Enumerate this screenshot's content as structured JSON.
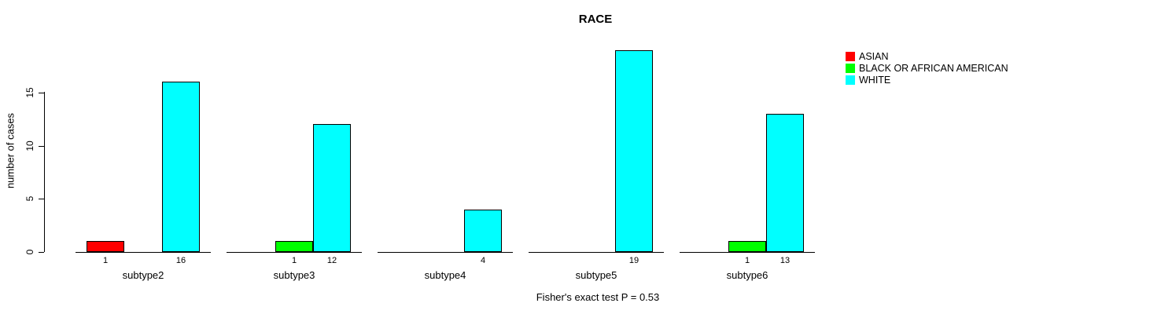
{
  "chart_data": {
    "type": "bar",
    "title": "RACE",
    "xlabel": "",
    "ylabel": "number of cases",
    "categories": [
      "subtype2",
      "subtype3",
      "subtype4",
      "subtype5",
      "subtype6"
    ],
    "series": [
      {
        "name": "ASIAN",
        "color": "#FF0000",
        "values": [
          1,
          0,
          0,
          0,
          0
        ]
      },
      {
        "name": "BLACK OR AFRICAN AMERICAN",
        "color": "#00FF00",
        "values": [
          0,
          1,
          0,
          0,
          1
        ]
      },
      {
        "name": "WHITE",
        "color": "#00FFFF",
        "values": [
          16,
          12,
          4,
          19,
          13
        ]
      }
    ],
    "bar_value_labels": [
      [
        1,
        null,
        16
      ],
      [
        null,
        1,
        12
      ],
      [
        null,
        null,
        4
      ],
      [
        null,
        null,
        19
      ],
      [
        null,
        1,
        13
      ]
    ],
    "yticks": [
      0,
      5,
      10,
      15
    ],
    "ylim": [
      0,
      19
    ],
    "grid": false,
    "legend_position": "top-right",
    "annotation": "Fisher's exact test P = 0.53"
  }
}
